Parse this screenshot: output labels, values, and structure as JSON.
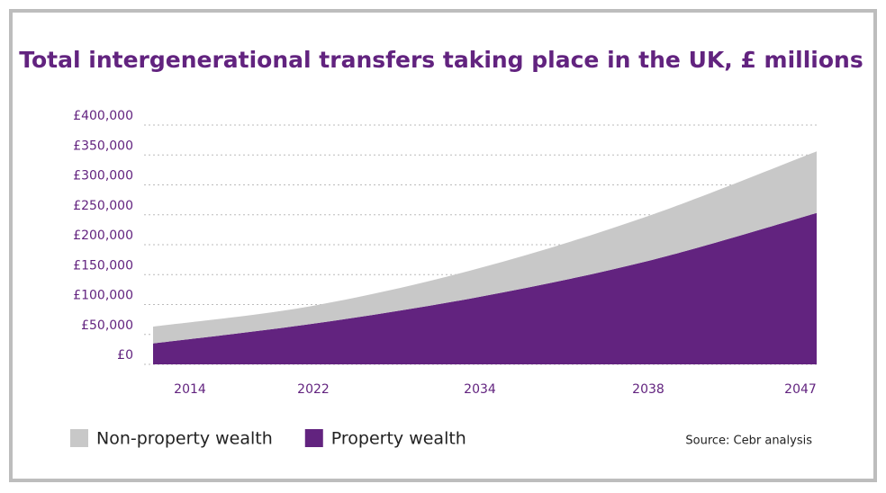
{
  "chart_data": {
    "type": "stacked_area",
    "title": "Total intergenerational transfers taking place in the UK, £ millions",
    "categories": [
      "2014",
      "2022",
      "2034",
      "2038",
      "2047"
    ],
    "series": [
      {
        "name": "Non-property wealth",
        "color": "#c8c8c8",
        "values": [
          28000,
          30000,
          48000,
          75000,
          103000
        ]
      },
      {
        "name": "Property wealth",
        "color": "#62237f",
        "values": [
          35000,
          68000,
          113000,
          173000,
          253000
        ]
      }
    ],
    "ylim": [
      0,
      400000
    ],
    "yticks": [
      {
        "value": 0,
        "label": "£0"
      },
      {
        "value": 50000,
        "label": "£50,000"
      },
      {
        "value": 100000,
        "label": "£100,000"
      },
      {
        "value": 150000,
        "label": "£150,000"
      },
      {
        "value": 200000,
        "label": "£200,000"
      },
      {
        "value": 250000,
        "label": "£250,000"
      },
      {
        "value": 300000,
        "label": "£300,000"
      },
      {
        "value": 350000,
        "label": "£350,000"
      },
      {
        "value": 400000,
        "label": "£400,000"
      }
    ],
    "grid": true,
    "source": "Source: Cebr analysis"
  }
}
